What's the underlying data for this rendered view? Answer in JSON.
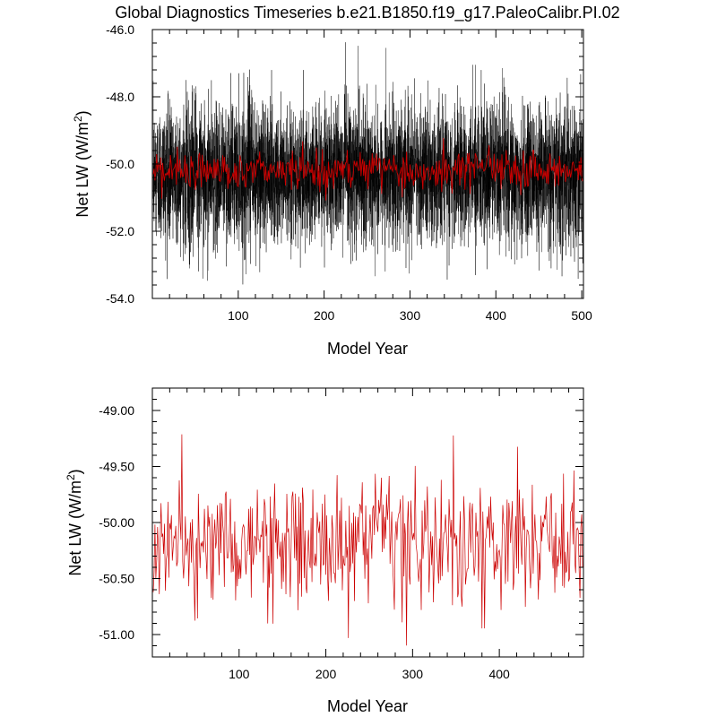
{
  "title": "Global Diagnostics Timeseries b.e21.B1850.f19_g17.PaleoCalibr.PI.02",
  "colors": {
    "monthly": "#000000",
    "annual": "#cc0000"
  },
  "chart_data": [
    {
      "type": "line",
      "xlabel": "Model Year",
      "ylabel_main": "Net LW (W/m",
      "ylabel_sup": "2",
      "ylabel_close": ")",
      "xlim": [
        0,
        502
      ],
      "ylim": [
        -54.0,
        -46.0
      ],
      "xticks": [
        100,
        200,
        300,
        400,
        500
      ],
      "xtick_labels": [
        "100",
        "200",
        "300",
        "400",
        "500"
      ],
      "yticks": [
        -54.0,
        -52.0,
        -50.0,
        -48.0,
        -46.0
      ],
      "ytick_labels": [
        "-54.0",
        "-52.0",
        "-50.0",
        "-48.0",
        "-46.0"
      ],
      "series": [
        {
          "kind": "monthly",
          "samples_per_year": 12,
          "mean": -50.3,
          "spread": 1.0,
          "min": -53.6,
          "max": -46.3,
          "color": "#000000"
        },
        {
          "kind": "annual",
          "samples_per_year": 1,
          "mean": -50.2,
          "spread": 0.28,
          "min": -51.1,
          "max": -49.15,
          "color": "#cc0000"
        }
      ]
    },
    {
      "type": "line",
      "xlabel": "Model Year",
      "ylabel_main": "Net LW (W/m",
      "ylabel_sup": "2",
      "ylabel_close": ")",
      "xlim": [
        0,
        497
      ],
      "ylim": [
        -51.2,
        -48.8
      ],
      "xticks": [
        100,
        200,
        300,
        400
      ],
      "xtick_labels": [
        "100",
        "200",
        "300",
        "400"
      ],
      "yticks": [
        -51.0,
        -50.5,
        -50.0,
        -49.5,
        -49.0
      ],
      "ytick_labels": [
        "-51.00",
        "-50.50",
        "-50.00",
        "-49.50",
        "-49.00"
      ],
      "series": [
        {
          "kind": "annual",
          "samples_per_year": 1,
          "mean": -50.2,
          "spread": 0.28,
          "min": -51.1,
          "max": -49.15,
          "color": "#cc0000"
        }
      ]
    }
  ]
}
